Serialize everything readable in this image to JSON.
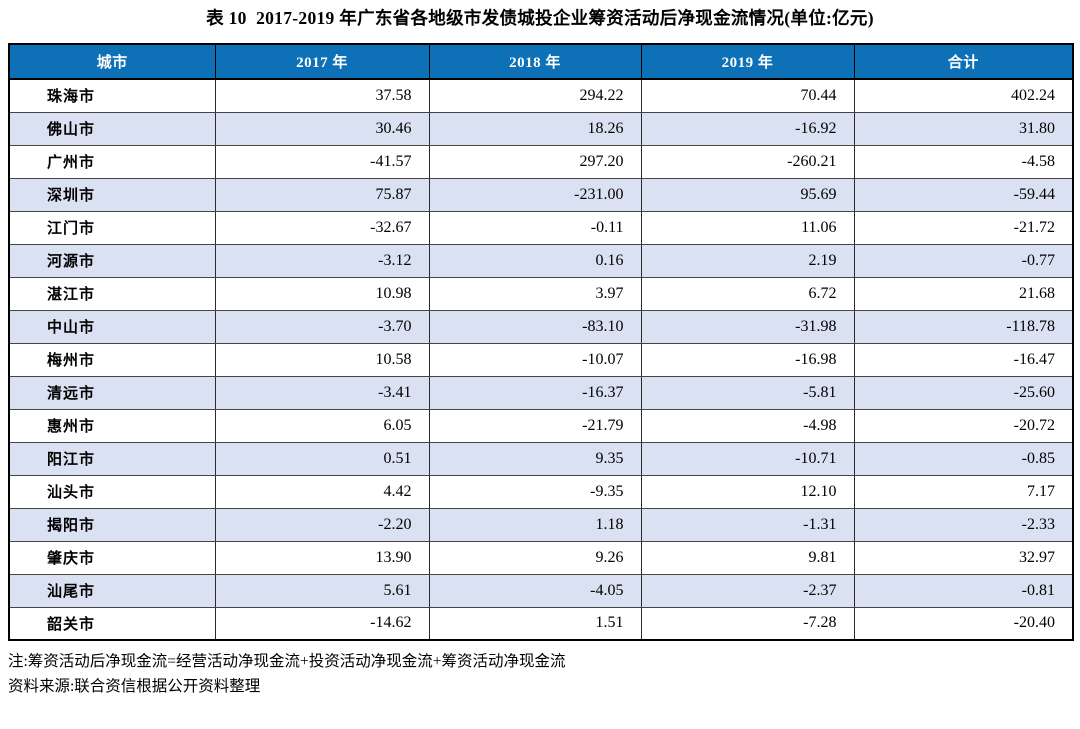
{
  "page": {
    "title": "表 10  2017-2019 年广东省各地级市发债城投企业筹资活动后净现金流情况(单位:亿元)"
  },
  "table": {
    "columns": [
      {
        "key": "city",
        "label": "城市"
      },
      {
        "key": "y2017",
        "label": "2017 年"
      },
      {
        "key": "y2018",
        "label": "2018 年"
      },
      {
        "key": "y2019",
        "label": "2019 年"
      },
      {
        "key": "total",
        "label": "合计"
      }
    ],
    "rows": [
      [
        "珠海市",
        "37.58",
        "294.22",
        "70.44",
        "402.24"
      ],
      [
        "佛山市",
        "30.46",
        "18.26",
        "-16.92",
        "31.80"
      ],
      [
        "广州市",
        "-41.57",
        "297.20",
        "-260.21",
        "-4.58"
      ],
      [
        "深圳市",
        "75.87",
        "-231.00",
        "95.69",
        "-59.44"
      ],
      [
        "江门市",
        "-32.67",
        "-0.11",
        "11.06",
        "-21.72"
      ],
      [
        "河源市",
        "-3.12",
        "0.16",
        "2.19",
        "-0.77"
      ],
      [
        "湛江市",
        "10.98",
        "3.97",
        "6.72",
        "21.68"
      ],
      [
        "中山市",
        "-3.70",
        "-83.10",
        "-31.98",
        "-118.78"
      ],
      [
        "梅州市",
        "10.58",
        "-10.07",
        "-16.98",
        "-16.47"
      ],
      [
        "清远市",
        "-3.41",
        "-16.37",
        "-5.81",
        "-25.60"
      ],
      [
        "惠州市",
        "6.05",
        "-21.79",
        "-4.98",
        "-20.72"
      ],
      [
        "阳江市",
        "0.51",
        "9.35",
        "-10.71",
        "-0.85"
      ],
      [
        "汕头市",
        "4.42",
        "-9.35",
        "12.10",
        "7.17"
      ],
      [
        "揭阳市",
        "-2.20",
        "1.18",
        "-1.31",
        "-2.33"
      ],
      [
        "肇庆市",
        "13.90",
        "9.26",
        "9.81",
        "32.97"
      ],
      [
        "汕尾市",
        "5.61",
        "-4.05",
        "-2.37",
        "-0.81"
      ],
      [
        "韶关市",
        "-14.62",
        "1.51",
        "-7.28",
        "-20.40"
      ]
    ]
  },
  "notes": {
    "formula": "注:筹资活动后净现金流=经营活动净现金流+投资活动净现金流+筹资活动净现金流",
    "source": "资料来源:联合资信根据公开资料整理"
  },
  "colors": {
    "header_bg": "#0E71B8",
    "header_text": "#FFFFFF",
    "stripe_bg": "#D9E1F2",
    "row_bg": "#FFFFFF",
    "border_outer": "#000000",
    "border_inner": "#454545",
    "text": "#000000"
  }
}
